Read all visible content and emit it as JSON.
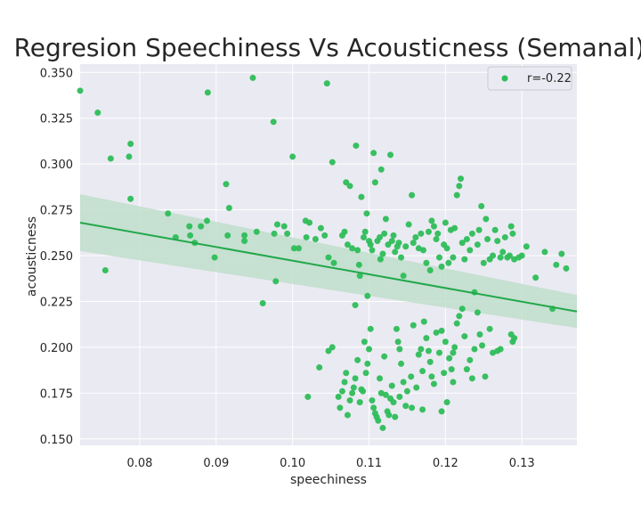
{
  "chart_data": {
    "type": "scatter",
    "title": "Regresion Speechiness Vs Acousticness (Semanal)",
    "xlabel": "speechiness",
    "ylabel": "acousticness",
    "xlim": [
      0.0722,
      0.1372
    ],
    "ylim": [
      0.1465,
      0.3545
    ],
    "xticks": [
      "0.08",
      "0.09",
      "0.10",
      "0.11",
      "0.12",
      "0.13"
    ],
    "yticks": [
      "0.150",
      "0.175",
      "0.200",
      "0.225",
      "0.250",
      "0.275",
      "0.300",
      "0.325",
      "0.350"
    ],
    "grid": true,
    "legend_position": "top-right",
    "colors": {
      "points": "#2ebd59",
      "regression": "#21a84a",
      "band": "#b9dcc6",
      "background": "#eaeaf2",
      "grid": "#ffffff"
    },
    "regression": {
      "label": "r=-0.22",
      "x": [
        0.0722,
        0.1372
      ],
      "y": [
        0.268,
        0.2195
      ],
      "ci_lower": [
        0.2525,
        0.2105
      ],
      "ci_upper": [
        0.2835,
        0.2285
      ]
    },
    "points": [
      [
        0.0722,
        0.34
      ],
      [
        0.0745,
        0.328
      ],
      [
        0.0762,
        0.303
      ],
      [
        0.0788,
        0.311
      ],
      [
        0.0786,
        0.304
      ],
      [
        0.0788,
        0.281
      ],
      [
        0.0755,
        0.242
      ],
      [
        0.0837,
        0.273
      ],
      [
        0.0847,
        0.26
      ],
      [
        0.0865,
        0.266
      ],
      [
        0.0866,
        0.261
      ],
      [
        0.0872,
        0.257
      ],
      [
        0.088,
        0.266
      ],
      [
        0.0888,
        0.269
      ],
      [
        0.0889,
        0.339
      ],
      [
        0.0898,
        0.249
      ],
      [
        0.0913,
        0.289
      ],
      [
        0.0917,
        0.276
      ],
      [
        0.0915,
        0.261
      ],
      [
        0.0948,
        0.347
      ],
      [
        0.0937,
        0.261
      ],
      [
        0.0937,
        0.258
      ],
      [
        0.0953,
        0.263
      ],
      [
        0.0961,
        0.224
      ],
      [
        0.0975,
        0.323
      ],
      [
        0.0976,
        0.262
      ],
      [
        0.098,
        0.267
      ],
      [
        0.0978,
        0.236
      ],
      [
        0.0989,
        0.266
      ],
      [
        0.0993,
        0.262
      ],
      [
        0.1,
        0.304
      ],
      [
        0.1002,
        0.254
      ],
      [
        0.1008,
        0.254
      ],
      [
        0.1017,
        0.269
      ],
      [
        0.1022,
        0.268
      ],
      [
        0.1018,
        0.26
      ],
      [
        0.103,
        0.259
      ],
      [
        0.1037,
        0.265
      ],
      [
        0.1042,
        0.261
      ],
      [
        0.1045,
        0.344
      ],
      [
        0.1047,
        0.249
      ],
      [
        0.1052,
        0.301
      ],
      [
        0.1054,
        0.246
      ],
      [
        0.1035,
        0.189
      ],
      [
        0.1047,
        0.198
      ],
      [
        0.1052,
        0.2
      ],
      [
        0.102,
        0.173
      ],
      [
        0.1065,
        0.261
      ],
      [
        0.1068,
        0.263
      ],
      [
        0.107,
        0.29
      ],
      [
        0.1075,
        0.288
      ],
      [
        0.1072,
        0.256
      ],
      [
        0.1078,
        0.254
      ],
      [
        0.1082,
        0.223
      ],
      [
        0.1085,
        0.253
      ],
      [
        0.1083,
        0.31
      ],
      [
        0.1087,
        0.245
      ],
      [
        0.109,
        0.282
      ],
      [
        0.1093,
        0.26
      ],
      [
        0.1095,
        0.263
      ],
      [
        0.1097,
        0.273
      ],
      [
        0.1088,
        0.239
      ],
      [
        0.1098,
        0.228
      ],
      [
        0.11,
        0.258
      ],
      [
        0.1102,
        0.256
      ],
      [
        0.1104,
        0.253
      ],
      [
        0.1106,
        0.306
      ],
      [
        0.1108,
        0.29
      ],
      [
        0.1111,
        0.258
      ],
      [
        0.1114,
        0.26
      ],
      [
        0.1116,
        0.297
      ],
      [
        0.1115,
        0.248
      ],
      [
        0.1118,
        0.251
      ],
      [
        0.112,
        0.262
      ],
      [
        0.1122,
        0.27
      ],
      [
        0.1125,
        0.256
      ],
      [
        0.1128,
        0.305
      ],
      [
        0.113,
        0.258
      ],
      [
        0.1132,
        0.261
      ],
      [
        0.1134,
        0.252
      ],
      [
        0.1137,
        0.255
      ],
      [
        0.1139,
        0.257
      ],
      [
        0.1142,
        0.249
      ],
      [
        0.1145,
        0.239
      ],
      [
        0.1148,
        0.255
      ],
      [
        0.1152,
        0.267
      ],
      [
        0.1156,
        0.283
      ],
      [
        0.1158,
        0.257
      ],
      [
        0.1161,
        0.26
      ],
      [
        0.1165,
        0.254
      ],
      [
        0.1168,
        0.262
      ],
      [
        0.1171,
        0.253
      ],
      [
        0.1175,
        0.246
      ],
      [
        0.1178,
        0.263
      ],
      [
        0.118,
        0.242
      ],
      [
        0.1182,
        0.269
      ],
      [
        0.1185,
        0.266
      ],
      [
        0.1188,
        0.259
      ],
      [
        0.119,
        0.262
      ],
      [
        0.1192,
        0.249
      ],
      [
        0.1195,
        0.244
      ],
      [
        0.1198,
        0.256
      ],
      [
        0.12,
        0.268
      ],
      [
        0.1202,
        0.254
      ],
      [
        0.1204,
        0.246
      ],
      [
        0.1207,
        0.264
      ],
      [
        0.121,
        0.249
      ],
      [
        0.1212,
        0.265
      ],
      [
        0.1215,
        0.283
      ],
      [
        0.1218,
        0.288
      ],
      [
        0.122,
        0.292
      ],
      [
        0.1222,
        0.257
      ],
      [
        0.1225,
        0.248
      ],
      [
        0.1228,
        0.259
      ],
      [
        0.1232,
        0.253
      ],
      [
        0.1235,
        0.262
      ],
      [
        0.1238,
        0.23
      ],
      [
        0.1242,
        0.256
      ],
      [
        0.1244,
        0.264
      ],
      [
        0.1247,
        0.277
      ],
      [
        0.125,
        0.246
      ],
      [
        0.1253,
        0.27
      ],
      [
        0.1255,
        0.259
      ],
      [
        0.1258,
        0.248
      ],
      [
        0.1262,
        0.25
      ],
      [
        0.1265,
        0.264
      ],
      [
        0.1268,
        0.258
      ],
      [
        0.1272,
        0.249
      ],
      [
        0.1275,
        0.252
      ],
      [
        0.1278,
        0.26
      ],
      [
        0.1281,
        0.249
      ],
      [
        0.1284,
        0.25
      ],
      [
        0.1286,
        0.266
      ],
      [
        0.1288,
        0.262
      ],
      [
        0.129,
        0.248
      ],
      [
        0.1296,
        0.249
      ],
      [
        0.13,
        0.25
      ],
      [
        0.1306,
        0.255
      ],
      [
        0.1318,
        0.238
      ],
      [
        0.133,
        0.252
      ],
      [
        0.134,
        0.221
      ],
      [
        0.1345,
        0.245
      ],
      [
        0.1352,
        0.251
      ],
      [
        0.1358,
        0.243
      ],
      [
        0.106,
        0.173
      ],
      [
        0.1062,
        0.167
      ],
      [
        0.1065,
        0.176
      ],
      [
        0.1068,
        0.181
      ],
      [
        0.107,
        0.186
      ],
      [
        0.1072,
        0.163
      ],
      [
        0.1075,
        0.171
      ],
      [
        0.1078,
        0.175
      ],
      [
        0.108,
        0.178
      ],
      [
        0.1082,
        0.183
      ],
      [
        0.1085,
        0.193
      ],
      [
        0.1088,
        0.17
      ],
      [
        0.109,
        0.177
      ],
      [
        0.1092,
        0.176
      ],
      [
        0.1094,
        0.203
      ],
      [
        0.1096,
        0.186
      ],
      [
        0.1098,
        0.191
      ],
      [
        0.11,
        0.199
      ],
      [
        0.1102,
        0.21
      ],
      [
        0.1104,
        0.171
      ],
      [
        0.1106,
        0.167
      ],
      [
        0.1108,
        0.164
      ],
      [
        0.111,
        0.162
      ],
      [
        0.1112,
        0.16
      ],
      [
        0.1114,
        0.183
      ],
      [
        0.1116,
        0.175
      ],
      [
        0.1118,
        0.156
      ],
      [
        0.112,
        0.195
      ],
      [
        0.1122,
        0.174
      ],
      [
        0.1124,
        0.165
      ],
      [
        0.1126,
        0.163
      ],
      [
        0.1128,
        0.172
      ],
      [
        0.113,
        0.179
      ],
      [
        0.1132,
        0.17
      ],
      [
        0.1134,
        0.162
      ],
      [
        0.1136,
        0.21
      ],
      [
        0.1138,
        0.203
      ],
      [
        0.114,
        0.199
      ],
      [
        0.1142,
        0.191
      ],
      [
        0.1145,
        0.181
      ],
      [
        0.115,
        0.176
      ],
      [
        0.1155,
        0.184
      ],
      [
        0.1158,
        0.212
      ],
      [
        0.1162,
        0.178
      ],
      [
        0.1165,
        0.196
      ],
      [
        0.1168,
        0.199
      ],
      [
        0.117,
        0.187
      ],
      [
        0.1172,
        0.214
      ],
      [
        0.1175,
        0.205
      ],
      [
        0.1178,
        0.198
      ],
      [
        0.118,
        0.192
      ],
      [
        0.1182,
        0.184
      ],
      [
        0.1185,
        0.18
      ],
      [
        0.1188,
        0.208
      ],
      [
        0.1192,
        0.197
      ],
      [
        0.1195,
        0.209
      ],
      [
        0.1198,
        0.186
      ],
      [
        0.12,
        0.203
      ],
      [
        0.1202,
        0.17
      ],
      [
        0.1205,
        0.194
      ],
      [
        0.1208,
        0.188
      ],
      [
        0.121,
        0.197
      ],
      [
        0.1212,
        0.2
      ],
      [
        0.1215,
        0.213
      ],
      [
        0.1218,
        0.217
      ],
      [
        0.1222,
        0.221
      ],
      [
        0.1225,
        0.206
      ],
      [
        0.1228,
        0.188
      ],
      [
        0.1232,
        0.193
      ],
      [
        0.1235,
        0.183
      ],
      [
        0.1238,
        0.199
      ],
      [
        0.1242,
        0.219
      ],
      [
        0.1245,
        0.207
      ],
      [
        0.1248,
        0.201
      ],
      [
        0.1252,
        0.184
      ],
      [
        0.1258,
        0.21
      ],
      [
        0.1262,
        0.197
      ],
      [
        0.1268,
        0.198
      ],
      [
        0.1272,
        0.199
      ],
      [
        0.1286,
        0.207
      ],
      [
        0.1288,
        0.203
      ],
      [
        0.129,
        0.205
      ],
      [
        0.114,
        0.173
      ],
      [
        0.1148,
        0.168
      ],
      [
        0.1156,
        0.167
      ],
      [
        0.117,
        0.166
      ],
      [
        0.1195,
        0.165
      ],
      [
        0.121,
        0.181
      ]
    ]
  }
}
